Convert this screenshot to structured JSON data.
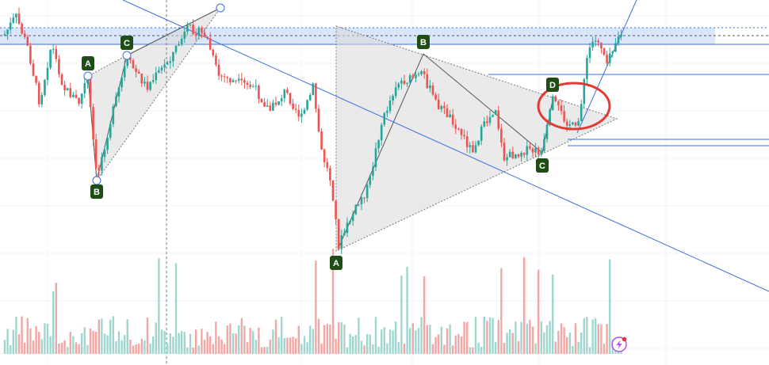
{
  "chart_data": {
    "type": "candlestick",
    "colors": {
      "up": "#26a69a",
      "down": "#ef5350",
      "volume_up": "#9fd6cf",
      "volume_down": "#f2a7a4",
      "trendline": "#3b6fe0",
      "zone_fill": "#cfe0fb",
      "triangle_fill": "#d9d9d9",
      "point_label_bg": "#1e4d16",
      "highlight_circle": "#e53935",
      "quick_icon": "#b84ee8"
    },
    "grid": true,
    "pattern_points": [
      {
        "id": "p1-A",
        "label": "A"
      },
      {
        "id": "p1-B",
        "label": "B"
      },
      {
        "id": "p1-C",
        "label": "C"
      },
      {
        "id": "p2-A",
        "label": "A"
      },
      {
        "id": "p2-B",
        "label": "B"
      },
      {
        "id": "p2-C",
        "label": "C"
      },
      {
        "id": "p2-D",
        "label": "D"
      }
    ]
  }
}
